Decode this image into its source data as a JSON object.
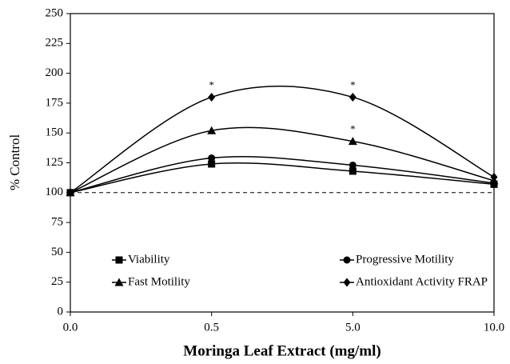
{
  "chart_data": {
    "type": "line",
    "x_label": "Moringa Leaf Extract (mg/ml)",
    "y_label": "% Control",
    "categories": [
      "0.0",
      "0.5",
      "5.0",
      "10.0"
    ],
    "ylim": [
      0,
      250
    ],
    "yticks": [
      0,
      25,
      50,
      75,
      100,
      125,
      150,
      175,
      200,
      225,
      250
    ],
    "reference_line": 100,
    "smooth": true,
    "series": [
      {
        "name": "Viability",
        "color": "#000000",
        "marker": "square",
        "values": [
          100,
          124,
          118,
          107
        ],
        "annotations": [
          null,
          null,
          null,
          null
        ]
      },
      {
        "name": "Progressive Motility",
        "color": "#000000",
        "marker": "circle",
        "values": [
          100,
          129,
          123,
          108
        ],
        "annotations": [
          null,
          null,
          null,
          null
        ]
      },
      {
        "name": "Fast Motility",
        "color": "#000000",
        "marker": "triangle",
        "values": [
          100,
          152,
          143,
          110
        ],
        "annotations": [
          null,
          null,
          "*",
          null
        ]
      },
      {
        "name": "Antioxidant Activity FRAP",
        "color": "#000000",
        "marker": "diamond",
        "values": [
          100,
          180,
          180,
          113
        ],
        "annotations": [
          null,
          "*",
          "*",
          null
        ]
      }
    ]
  }
}
